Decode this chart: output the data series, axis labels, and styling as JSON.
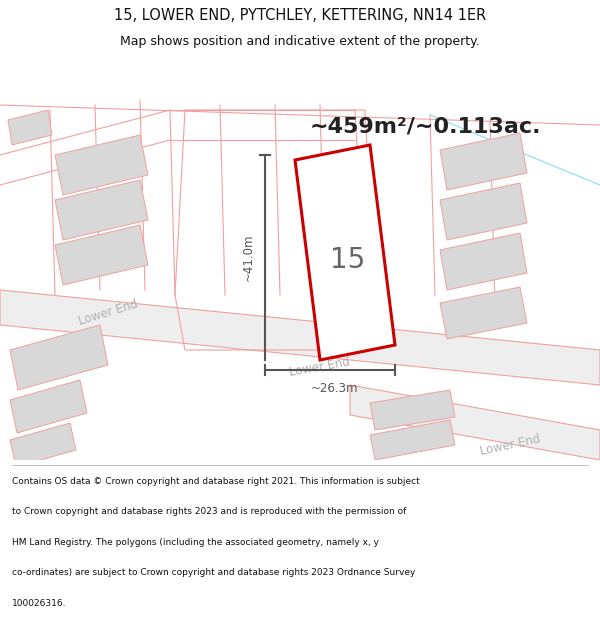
{
  "title_line1": "15, LOWER END, PYTCHLEY, KETTERING, NN14 1ER",
  "title_line2": "Map shows position and indicative extent of the property.",
  "area_text": "~459m²/~0.113ac.",
  "number_label": "15",
  "width_label": "~26.3m",
  "height_label": "~41.0m",
  "footer_lines": [
    "Contains OS data © Crown copyright and database right 2021. This information is subject",
    "to Crown copyright and database rights 2023 and is reproduced with the permission of",
    "HM Land Registry. The polygons (including the associated geometry, namely x, y",
    "co-ordinates) are subject to Crown copyright and database rights 2023 Ordnance Survey",
    "100026316."
  ],
  "map_bg": "#ffffff",
  "road_band_color": "#eeeeee",
  "road_edge_color": "#f0a0a0",
  "building_fill": "#d8d8d8",
  "building_edge": "#f0a0a0",
  "highlight_edge": "#cc0000",
  "highlight_fill": "#ffffff",
  "road_label_color": "#b0b0b0",
  "measure_color": "#555555",
  "title_color": "#111111",
  "footer_color": "#111111",
  "cyan_line_color": "#88ddee",
  "large_plot_edge": "#f0a0a0"
}
